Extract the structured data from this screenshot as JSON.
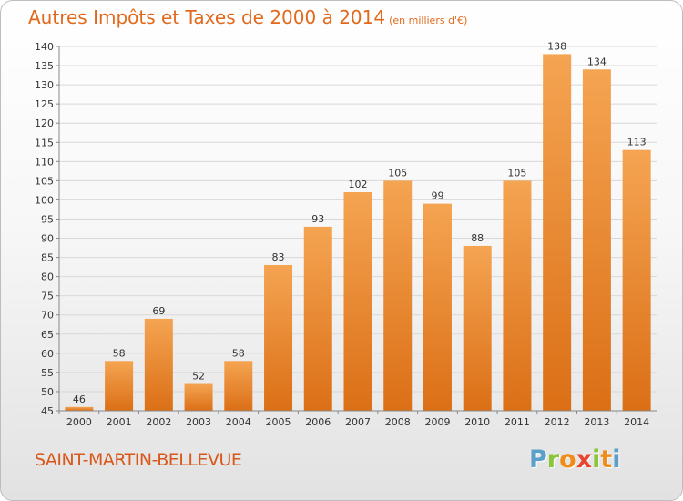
{
  "title": {
    "main": "Autres Impôts et Taxes de 2000 à 2014",
    "sub": "(en milliers d'€)"
  },
  "footer": {
    "commune": "SAINT-MARTIN-BELLEVUE",
    "logo_letters": [
      "P",
      "r",
      "o",
      "x",
      "i",
      "t",
      "i"
    ],
    "logo_colors": [
      "#5aa0c8",
      "#8cc43c",
      "#f08c1a",
      "#e8432f",
      "#8cc43c",
      "#f08c1a",
      "#5aa0c8"
    ]
  },
  "colors": {
    "bar_top": "#f5a452",
    "bar_bottom": "#db6f16",
    "axis": "#888888",
    "grid": "#d8d8d8",
    "text": "#333333"
  },
  "chart_data": {
    "type": "bar",
    "title": "Autres Impôts et Taxes de 2000 à 2014",
    "subtitle": "(en milliers d'€)",
    "xlabel": "",
    "ylabel": "",
    "categories": [
      "2000",
      "2001",
      "2002",
      "2003",
      "2004",
      "2005",
      "2006",
      "2007",
      "2008",
      "2009",
      "2010",
      "2011",
      "2012",
      "2013",
      "2014"
    ],
    "values": [
      46,
      58,
      69,
      52,
      58,
      83,
      93,
      102,
      105,
      99,
      88,
      105,
      138,
      134,
      113
    ],
    "ylim": [
      45,
      140
    ],
    "yticks": [
      45,
      50,
      55,
      60,
      65,
      70,
      75,
      80,
      85,
      90,
      95,
      100,
      105,
      110,
      115,
      120,
      125,
      130,
      135,
      140
    ],
    "grid": true
  }
}
